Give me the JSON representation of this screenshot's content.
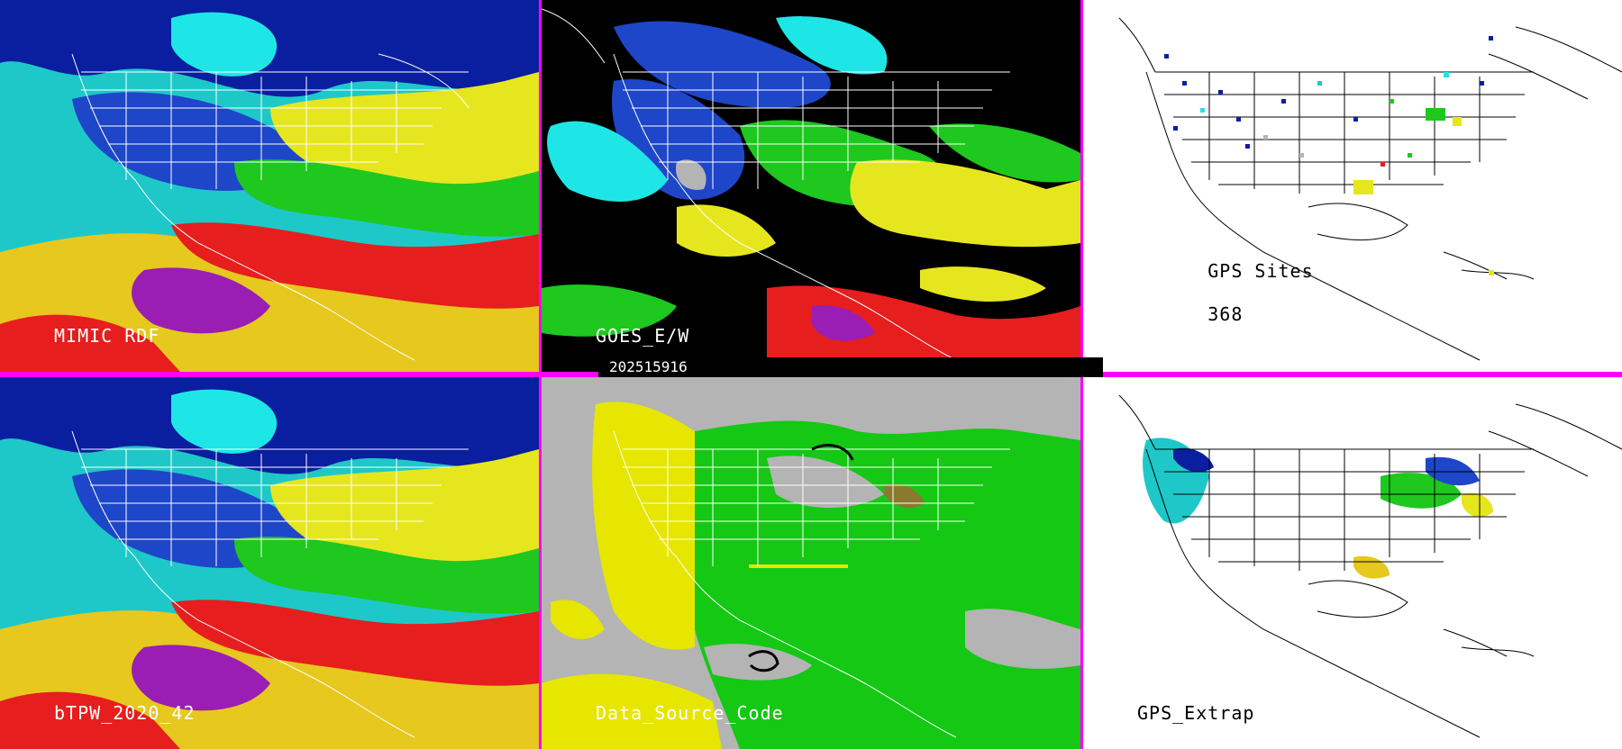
{
  "panels": {
    "mimic": {
      "label": "MIMIC RDF"
    },
    "goes": {
      "label": "GOES_E/W"
    },
    "gps_sites": {
      "label": "GPS Sites",
      "count": "368"
    },
    "btpw": {
      "label": "bTPW_2020_42"
    },
    "data_source": {
      "label": "Data_Source_Code"
    },
    "gps_extrap": {
      "label": "GPS_Extrap"
    }
  },
  "timestamp": "202515916",
  "colors": {
    "divider": "#ff00ff",
    "dry_blue": "#0a1ea0",
    "cyan": "#1ee6e6",
    "green": "#1ec81e",
    "yellow": "#e6e61e",
    "red": "#e61e1e",
    "purple": "#9a1eb4",
    "gray": "#b4b4b4",
    "source_yellow": "#e6e600",
    "source_green": "#14c814",
    "map_lines": "#ffffff"
  }
}
